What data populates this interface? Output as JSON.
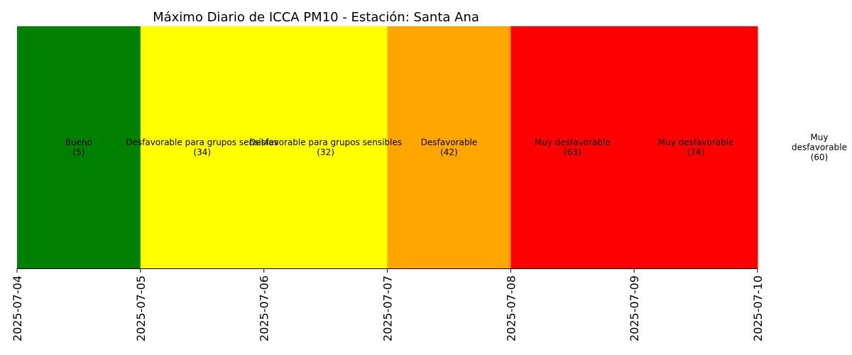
{
  "chart_data": {
    "type": "bar",
    "title": "Máximo Diario de ICCA PM10 - Estación: Santa Ana",
    "xlabel": "",
    "ylabel": "",
    "x_ticks": [
      "2025-07-04",
      "2025-07-05",
      "2025-07-06",
      "2025-07-07",
      "2025-07-08",
      "2025-07-09",
      "2025-07-10"
    ],
    "days": [
      {
        "date": "2025-07-04",
        "category": "Bueno",
        "value_label": "(5)",
        "value": 5,
        "color": "#008000"
      },
      {
        "date": "2025-07-05",
        "category": "Desfavorable para grupos sensibles",
        "value_label": "(34)",
        "value": 34,
        "color": "#ffff00"
      },
      {
        "date": "2025-07-06",
        "category": "Desfavorable para grupos sensibles",
        "value_label": "(32)",
        "value": 32,
        "color": "#ffff00"
      },
      {
        "date": "2025-07-07",
        "category": "Desfavorable",
        "value_label": "(42)",
        "value": 42,
        "color": "#ffa500"
      },
      {
        "date": "2025-07-08",
        "category": "Muy desfavorable",
        "value_label": "(63)",
        "value": 63,
        "color": "#ff0000"
      },
      {
        "date": "2025-07-09",
        "category": "Muy desfavorable",
        "value_label": "(74)",
        "value": 74,
        "color": "#ff0000"
      },
      {
        "date": "2025-07-10",
        "category": "Muy\ndesfavorable",
        "value_label": "(60)",
        "value": 60,
        "color": "none"
      }
    ],
    "grid": false,
    "legend": "none"
  }
}
